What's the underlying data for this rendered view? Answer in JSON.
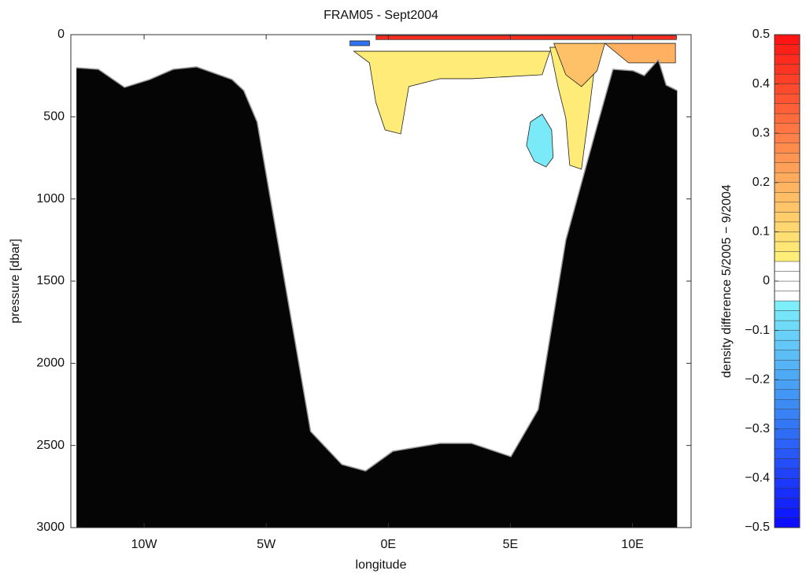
{
  "chart_data": {
    "type": "section",
    "title": "FRAM05 - Sept2004",
    "xlabel": "longitude",
    "ylabel": "pressure [dbar]",
    "colorbar_label": "density difference 5/2005 − 9/2004",
    "xlim": [
      -13,
      12.4
    ],
    "xticks": [
      {
        "value": -10,
        "label": "10W"
      },
      {
        "value": -5,
        "label": "5W"
      },
      {
        "value": 0,
        "label": "0E"
      },
      {
        "value": 5,
        "label": "5E"
      },
      {
        "value": 10,
        "label": "10E"
      }
    ],
    "ylim": [
      0,
      3000
    ],
    "y_inverted": true,
    "yticks": [
      0,
      500,
      1000,
      1500,
      2000,
      2500,
      3000
    ],
    "clim": [
      -0.5,
      0.5
    ],
    "cticks": [
      0.5,
      0.4,
      0.3,
      0.2,
      0.1,
      0,
      {
        "value": -0.1,
        "label": "−0.1"
      },
      {
        "value": -0.2,
        "label": "−0.2"
      },
      {
        "value": -0.3,
        "label": "−0.3"
      },
      {
        "value": -0.4,
        "label": "−0.4"
      },
      {
        "value": -0.5,
        "label": "−0.5"
      }
    ],
    "colormap": [
      [
        -0.5,
        "#0a0aff"
      ],
      [
        -0.25,
        "#3c8cf4"
      ],
      [
        -0.04,
        "#80f4fa"
      ],
      [
        -0.04,
        "#ffffff"
      ],
      [
        0.04,
        "#ffffff"
      ],
      [
        0.04,
        "#fff37a"
      ],
      [
        0.2,
        "#ffb060"
      ],
      [
        0.5,
        "#ff1010"
      ]
    ],
    "bathymetry_color": "#050505",
    "bathymetry": {
      "lon": [
        -12.77,
        -11.87,
        -10.8,
        -9.77,
        -8.81,
        -7.85,
        -6.4,
        -5.92,
        -5.37,
        -3.18,
        -1.9,
        -0.93,
        0.19,
        2.12,
        3.4,
        5.02,
        6.14,
        7.27,
        8.55,
        9.2,
        10.03,
        10.48,
        11.06,
        11.38,
        11.83
      ],
      "pressure": [
        201,
        211,
        321,
        273,
        211,
        196,
        273,
        340,
        532,
        2415,
        2616,
        2655,
        2535,
        2487,
        2487,
        2568,
        2281,
        1251,
        556,
        211,
        220,
        249,
        153,
        307,
        340
      ]
    },
    "regions": [
      {
        "level": 0.06,
        "lon": [
          -1.41,
          6.62,
          6.3,
          3.41,
          2.12,
          0.84,
          0.51,
          -0.13,
          -0.51,
          -0.77
        ],
        "pressure": [
          101,
          101,
          244,
          268,
          268,
          316,
          604,
          580,
          412,
          172
        ]
      },
      {
        "level": 0.06,
        "lon": [
          6.62,
          8.55,
          8.23,
          7.91,
          7.43,
          7.27,
          6.95
        ],
        "pressure": [
          77,
          77,
          460,
          819,
          795,
          508,
          316
        ]
      },
      {
        "level": 0.16,
        "lon": [
          6.78,
          8.87,
          8.55,
          7.91,
          7.27
        ],
        "pressure": [
          53,
          53,
          220,
          316,
          244
        ]
      },
      {
        "level": 0.2,
        "lon": [
          8.87,
          11.76,
          11.76,
          9.84
        ],
        "pressure": [
          53,
          53,
          172,
          172
        ]
      },
      {
        "level": -0.06,
        "lon": [
          5.82,
          6.3,
          6.69,
          6.75,
          6.46,
          5.98,
          5.66
        ],
        "pressure": [
          532,
          484,
          580,
          747,
          805,
          771,
          675
        ]
      },
      {
        "level": 0.45,
        "lon": [
          -0.5,
          11.8,
          11.8,
          -0.5
        ],
        "pressure": [
          5,
          5,
          30,
          30
        ]
      },
      {
        "level": -0.3,
        "lon": [
          -1.57,
          -0.77,
          -0.77,
          -1.57
        ],
        "pressure": [
          38,
          38,
          67,
          67
        ]
      }
    ]
  }
}
